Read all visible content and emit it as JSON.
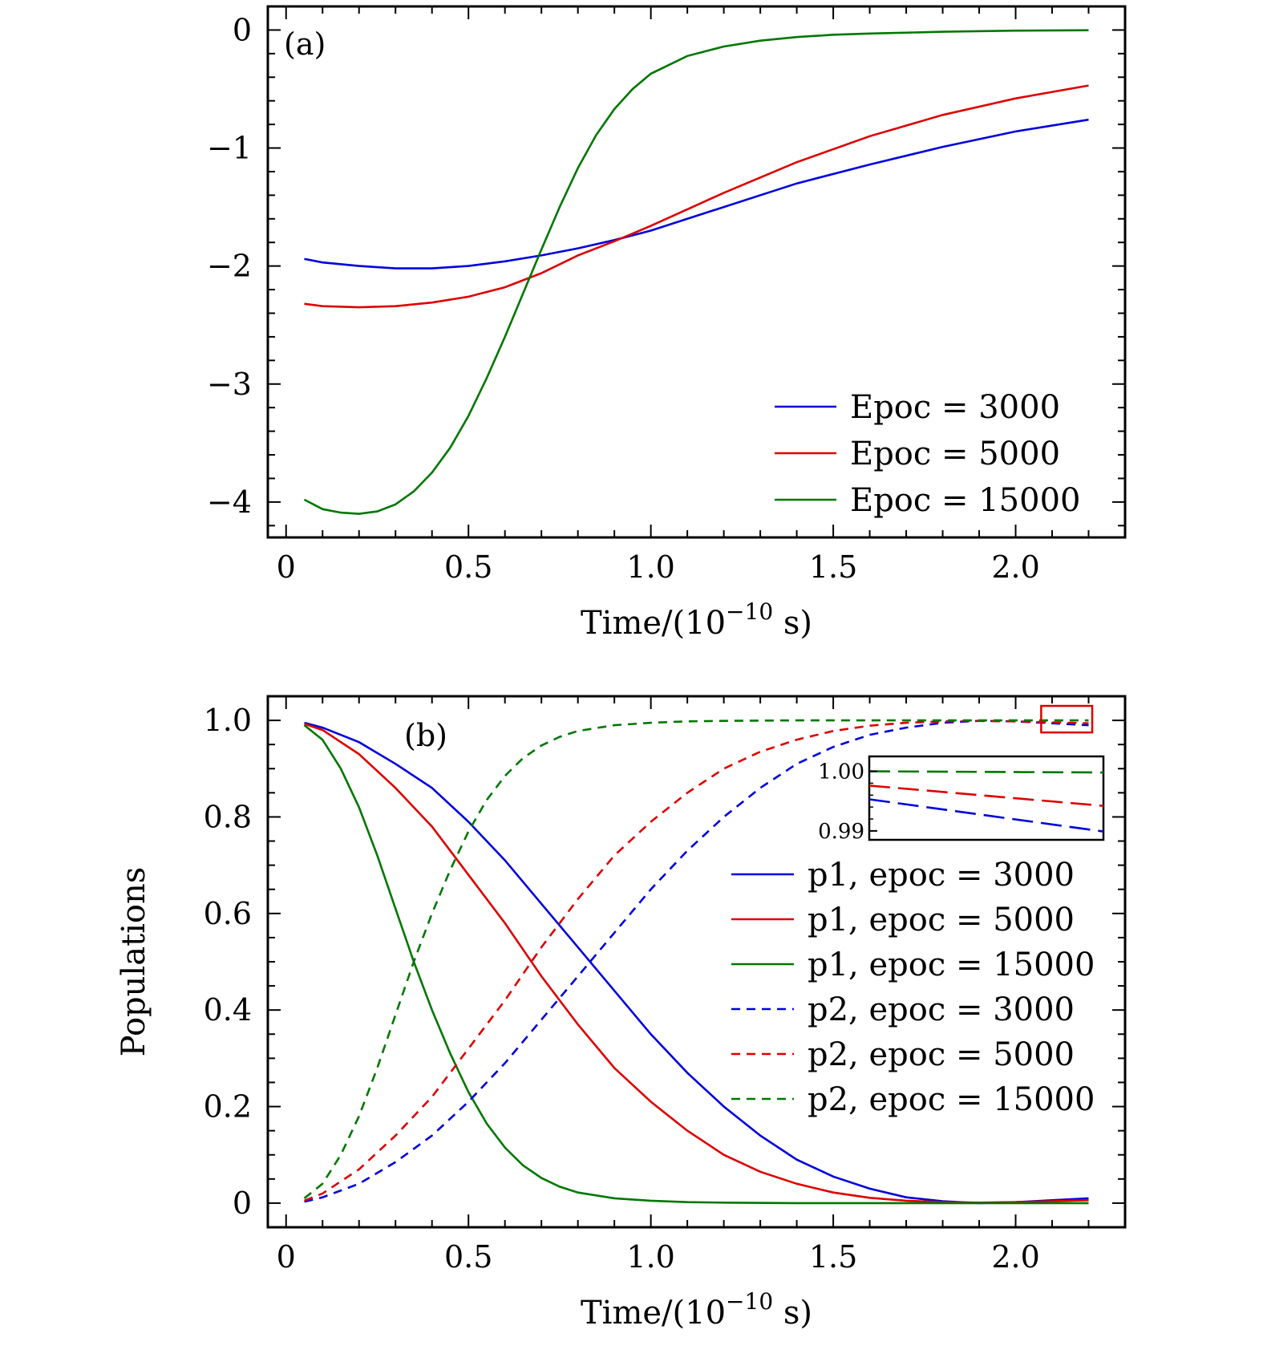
{
  "chart_data": [
    {
      "type": "line",
      "panel_label": "(a)",
      "xlabel": "Time/(10",
      "xlabel_exp": "−10",
      "xlabel_unit": " s)",
      "ylabel": "",
      "xlim": [
        -0.05,
        2.3
      ],
      "ylim": [
        -4.3,
        0.2
      ],
      "xticks": [
        0,
        0.5,
        1.0,
        1.5,
        2.0
      ],
      "xtick_labels": [
        "0",
        "0.5",
        "1.0",
        "1.5",
        "2.0"
      ],
      "yticks": [
        0,
        -1,
        -2,
        -3,
        -4
      ],
      "ytick_labels": [
        "0",
        "−1",
        "−2",
        "−3",
        "−4"
      ],
      "legend_position": "lower-right",
      "grid": false,
      "series": [
        {
          "name": "Epoc = 3000",
          "color": "#0000dd",
          "dash": "solid",
          "x": [
            0.05,
            0.1,
            0.2,
            0.3,
            0.4,
            0.5,
            0.6,
            0.7,
            0.8,
            0.9,
            1.0,
            1.2,
            1.4,
            1.6,
            1.8,
            2.0,
            2.2
          ],
          "y": [
            -1.94,
            -1.97,
            -2.0,
            -2.02,
            -2.02,
            -2.0,
            -1.96,
            -1.91,
            -1.85,
            -1.78,
            -1.7,
            -1.5,
            -1.3,
            -1.14,
            -0.99,
            -0.86,
            -0.76
          ]
        },
        {
          "name": "Epoc = 5000",
          "color": "#dd0000",
          "dash": "solid",
          "x": [
            0.05,
            0.1,
            0.2,
            0.3,
            0.4,
            0.5,
            0.6,
            0.7,
            0.8,
            0.9,
            1.0,
            1.2,
            1.4,
            1.6,
            1.8,
            2.0,
            2.2
          ],
          "y": [
            -2.32,
            -2.34,
            -2.35,
            -2.34,
            -2.31,
            -2.26,
            -2.18,
            -2.06,
            -1.91,
            -1.79,
            -1.66,
            -1.38,
            -1.12,
            -0.9,
            -0.72,
            -0.58,
            -0.47
          ]
        },
        {
          "name": "Epoc = 15000",
          "color": "#007700",
          "dash": "solid",
          "x": [
            0.05,
            0.1,
            0.15,
            0.2,
            0.25,
            0.3,
            0.35,
            0.4,
            0.45,
            0.5,
            0.55,
            0.6,
            0.65,
            0.7,
            0.75,
            0.8,
            0.85,
            0.9,
            0.95,
            1.0,
            1.1,
            1.2,
            1.3,
            1.4,
            1.5,
            1.6,
            1.8,
            2.0,
            2.2
          ],
          "y": [
            -3.98,
            -4.06,
            -4.09,
            -4.1,
            -4.08,
            -4.02,
            -3.91,
            -3.75,
            -3.54,
            -3.27,
            -2.95,
            -2.6,
            -2.23,
            -1.86,
            -1.5,
            -1.17,
            -0.89,
            -0.67,
            -0.5,
            -0.37,
            -0.22,
            -0.14,
            -0.09,
            -0.06,
            -0.04,
            -0.03,
            -0.015,
            -0.005,
            -0.002
          ]
        }
      ]
    },
    {
      "type": "line",
      "panel_label": "(b)",
      "xlabel": "Time/(10",
      "xlabel_exp": "−10",
      "xlabel_unit": " s)",
      "ylabel": "Populations",
      "xlim": [
        -0.05,
        2.3
      ],
      "ylim": [
        -0.05,
        1.05
      ],
      "xticks": [
        0,
        0.5,
        1.0,
        1.5,
        2.0
      ],
      "xtick_labels": [
        "0",
        "0.5",
        "1.0",
        "1.5",
        "2.0"
      ],
      "yticks": [
        0,
        0.2,
        0.4,
        0.6,
        0.8,
        1.0
      ],
      "ytick_labels": [
        "0",
        "0.2",
        "0.4",
        "0.6",
        "0.8",
        "1.0"
      ],
      "legend_position": "right",
      "grid": false,
      "series": [
        {
          "name": "p1, epoc = 3000",
          "color": "#0000dd",
          "dash": "solid",
          "x": [
            0.05,
            0.1,
            0.2,
            0.3,
            0.4,
            0.5,
            0.6,
            0.7,
            0.8,
            0.9,
            1.0,
            1.1,
            1.2,
            1.3,
            1.4,
            1.5,
            1.6,
            1.7,
            1.8,
            1.9,
            2.0,
            2.1,
            2.2
          ],
          "y": [
            0.995,
            0.985,
            0.955,
            0.91,
            0.86,
            0.79,
            0.71,
            0.62,
            0.53,
            0.44,
            0.35,
            0.27,
            0.2,
            0.14,
            0.09,
            0.055,
            0.03,
            0.012,
            0.004,
            0.0,
            0.002,
            0.006,
            0.01
          ]
        },
        {
          "name": "p1, epoc = 5000",
          "color": "#dd0000",
          "dash": "solid",
          "x": [
            0.05,
            0.1,
            0.2,
            0.3,
            0.4,
            0.5,
            0.6,
            0.7,
            0.8,
            0.9,
            1.0,
            1.1,
            1.2,
            1.3,
            1.4,
            1.5,
            1.6,
            1.7,
            1.8,
            1.9,
            2.0,
            2.1,
            2.2
          ],
          "y": [
            0.993,
            0.98,
            0.93,
            0.86,
            0.78,
            0.68,
            0.58,
            0.47,
            0.37,
            0.28,
            0.21,
            0.15,
            0.1,
            0.065,
            0.04,
            0.022,
            0.011,
            0.005,
            0.002,
            0.001,
            0.002,
            0.004,
            0.006
          ]
        },
        {
          "name": "p1, epoc = 15000",
          "color": "#007700",
          "dash": "solid",
          "x": [
            0.05,
            0.1,
            0.15,
            0.2,
            0.25,
            0.3,
            0.35,
            0.4,
            0.45,
            0.5,
            0.55,
            0.6,
            0.65,
            0.7,
            0.75,
            0.8,
            0.9,
            1.0,
            1.1,
            1.2,
            1.4,
            1.6,
            1.8,
            2.0,
            2.2
          ],
          "y": [
            0.99,
            0.96,
            0.9,
            0.82,
            0.72,
            0.61,
            0.5,
            0.4,
            0.31,
            0.23,
            0.165,
            0.115,
            0.078,
            0.052,
            0.034,
            0.022,
            0.01,
            0.005,
            0.002,
            0.001,
            0.0,
            0.0,
            0.0,
            0.0,
            0.0
          ]
        },
        {
          "name": "p2, epoc = 3000",
          "color": "#0000dd",
          "dash": "dashed",
          "x": [
            0.05,
            0.1,
            0.2,
            0.3,
            0.4,
            0.5,
            0.6,
            0.7,
            0.8,
            0.9,
            1.0,
            1.1,
            1.2,
            1.3,
            1.4,
            1.5,
            1.6,
            1.7,
            1.8,
            1.9,
            2.0,
            2.1,
            2.2
          ],
          "y": [
            0.003,
            0.012,
            0.04,
            0.085,
            0.14,
            0.21,
            0.29,
            0.38,
            0.47,
            0.56,
            0.65,
            0.73,
            0.8,
            0.86,
            0.91,
            0.945,
            0.97,
            0.985,
            0.995,
            0.999,
            0.998,
            0.994,
            0.99
          ]
        },
        {
          "name": "p2, epoc = 5000",
          "color": "#dd0000",
          "dash": "dashed",
          "x": [
            0.05,
            0.1,
            0.2,
            0.3,
            0.4,
            0.5,
            0.6,
            0.7,
            0.8,
            0.9,
            1.0,
            1.1,
            1.2,
            1.3,
            1.4,
            1.5,
            1.6,
            1.7,
            1.8,
            1.9,
            2.0,
            2.1,
            2.2
          ],
          "y": [
            0.005,
            0.02,
            0.07,
            0.14,
            0.22,
            0.32,
            0.42,
            0.53,
            0.63,
            0.72,
            0.79,
            0.85,
            0.9,
            0.935,
            0.96,
            0.978,
            0.989,
            0.995,
            0.998,
            0.999,
            0.998,
            0.996,
            0.994
          ]
        },
        {
          "name": "p2, epoc = 15000",
          "color": "#007700",
          "dash": "dashed",
          "x": [
            0.05,
            0.1,
            0.15,
            0.2,
            0.25,
            0.3,
            0.35,
            0.4,
            0.45,
            0.5,
            0.55,
            0.6,
            0.65,
            0.7,
            0.75,
            0.8,
            0.9,
            1.0,
            1.1,
            1.2,
            1.4,
            1.6,
            1.8,
            2.0,
            2.2
          ],
          "y": [
            0.01,
            0.04,
            0.1,
            0.18,
            0.28,
            0.39,
            0.5,
            0.6,
            0.69,
            0.77,
            0.835,
            0.885,
            0.922,
            0.948,
            0.966,
            0.978,
            0.99,
            0.995,
            0.998,
            0.999,
            1.0,
            1.0,
            1.0,
            1.0,
            1.0
          ]
        }
      ],
      "highlight_box": {
        "x": [
          2.07,
          2.21
        ],
        "y": [
          0.975,
          1.03
        ],
        "color": "#dd0000"
      },
      "inset": {
        "xlim": [
          2.07,
          2.21
        ],
        "ylim": [
          0.9885,
          1.0025
        ],
        "yticks": [
          1.0,
          0.99
        ],
        "ytick_labels": [
          "1.00",
          "0.99"
        ],
        "series": [
          {
            "color": "#007700",
            "x": [
              2.07,
              2.21
            ],
            "y": [
              1.0,
              0.9998
            ]
          },
          {
            "color": "#dd0000",
            "x": [
              2.07,
              2.21
            ],
            "y": [
              0.9976,
              0.9942
            ]
          },
          {
            "color": "#0000dd",
            "x": [
              2.07,
              2.21
            ],
            "y": [
              0.9953,
              0.9899
            ]
          }
        ]
      }
    }
  ]
}
